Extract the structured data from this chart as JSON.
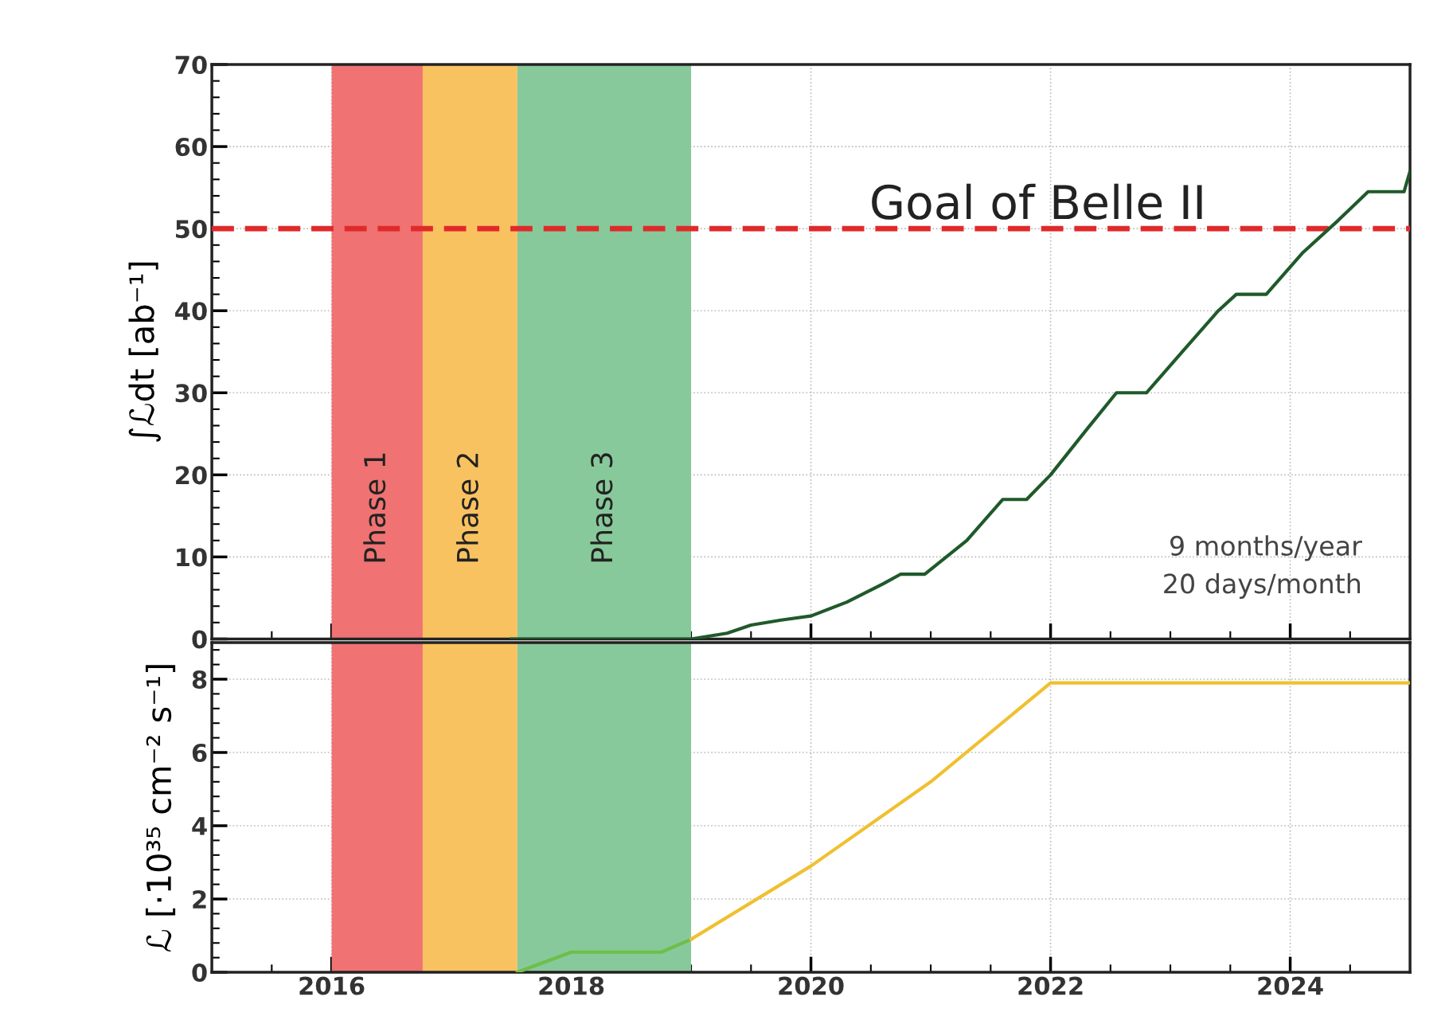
{
  "chart_data": [
    {
      "type": "line",
      "ylabel": "∫ℒdt [ab⁻¹]",
      "xlim": [
        2015,
        2025
      ],
      "xticks": [
        2016,
        2018,
        2020,
        2022,
        2024
      ],
      "ylim": [
        0,
        70
      ],
      "yticks": [
        0,
        10,
        20,
        30,
        40,
        50,
        60,
        70
      ],
      "tick_labels": "y",
      "grid": true,
      "series": [
        {
          "color": "#1f5a2a",
          "x": [
            2017.5,
            2019.0,
            2019.3,
            2019.5,
            2019.75,
            2020.0,
            2020.3,
            2020.6,
            2020.75,
            2020.95,
            2021.3,
            2021.6,
            2021.8,
            2022.0,
            2022.3,
            2022.55,
            2022.8,
            2023.1,
            2023.4,
            2023.55,
            2023.8,
            2024.1,
            2024.4,
            2024.65,
            2024.95,
            2025.0
          ],
          "values": [
            0,
            0,
            0.7,
            1.7,
            2.3,
            2.8,
            4.5,
            6.7,
            7.9,
            7.9,
            12,
            17,
            17,
            20,
            25.5,
            30,
            30,
            35,
            40,
            42,
            42,
            47,
            51,
            54.5,
            54.5,
            57
          ]
        }
      ],
      "bands": [
        {
          "axis": "x",
          "from": 2016.0,
          "to": 2016.76,
          "label": "Phase 1",
          "color": "#f07272"
        },
        {
          "axis": "x",
          "from": 2016.76,
          "to": 2017.55,
          "label": "Phase 2",
          "color": "#f9c261"
        },
        {
          "axis": "x",
          "from": 2017.55,
          "to": 2019.0,
          "label": "Phase 3",
          "color": "#88c99b"
        }
      ],
      "ref_lines": [
        {
          "axis": "y",
          "value": 50,
          "label": "Goal of Belle II",
          "color": "#e02a2a",
          "line_style": "dashed"
        }
      ],
      "annotations": [
        "9 months/year\n20 days/month"
      ]
    },
    {
      "type": "line",
      "ylabel": "ℒ [·10³⁵ cm⁻² s⁻¹]",
      "xlim": [
        2015,
        2025
      ],
      "xticks": [
        2016,
        2018,
        2020,
        2022,
        2024
      ],
      "ylim": [
        0,
        9
      ],
      "yticks": [
        0,
        2,
        4,
        6,
        8
      ],
      "grid": true,
      "series": [
        {
          "color": "#6cbf4a",
          "x": [
            2017.55,
            2018.0,
            2018.75,
            2019.0
          ],
          "values": [
            0,
            0.55,
            0.55,
            0.9
          ]
        },
        {
          "color": "#f0c030",
          "x": [
            2019.0,
            2020.0,
            2021.0,
            2022.0,
            2025.0
          ],
          "values": [
            0.9,
            2.9,
            5.2,
            7.9,
            7.9
          ]
        }
      ],
      "bands": [
        {
          "axis": "x",
          "from": 2016.0,
          "to": 2016.76,
          "color": "#f07272"
        },
        {
          "axis": "x",
          "from": 2016.76,
          "to": 2017.55,
          "color": "#f9c261"
        },
        {
          "axis": "x",
          "from": 2017.55,
          "to": 2019.0,
          "color": "#88c99b"
        }
      ]
    }
  ]
}
